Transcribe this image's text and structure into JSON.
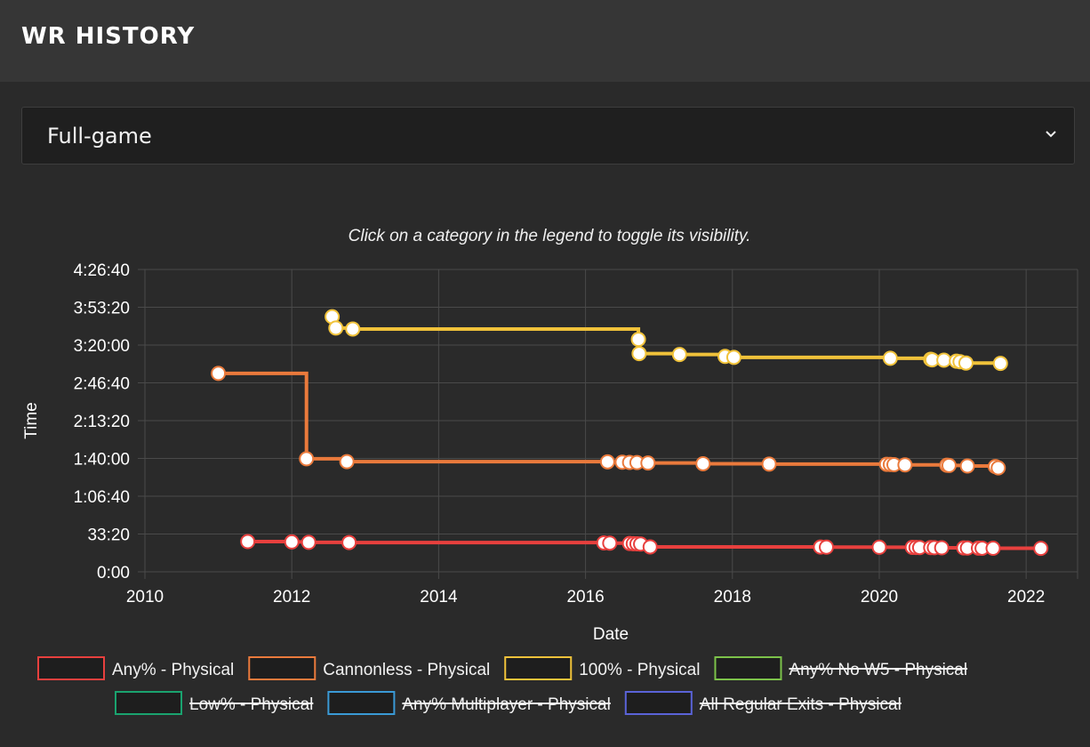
{
  "header": {
    "title": "WR HISTORY"
  },
  "selector": {
    "value": "Full-game"
  },
  "chart_data": {
    "type": "line",
    "title": "",
    "subtitle": "Click on a category in the legend to toggle its visibility.",
    "xlabel": "Date",
    "ylabel": "Time",
    "xlim": [
      2010,
      2022.7
    ],
    "ylim": [
      0,
      16000
    ],
    "x_ticks": [
      "2010",
      "2012",
      "2014",
      "2016",
      "2018",
      "2020",
      "2022"
    ],
    "y_ticks": [
      "0:00",
      "33:20",
      "1:06:40",
      "1:40:00",
      "2:13:20",
      "2:46:40",
      "3:20:00",
      "3:53:20",
      "4:26:40"
    ],
    "step_line": true,
    "grid": true,
    "legend_position": "bottom",
    "series": [
      {
        "name": "Any% - Physical",
        "color": "#e8403e",
        "hidden": false,
        "points": [
          [
            2011.4,
            1600
          ],
          [
            2012.0,
            1580
          ],
          [
            2012.23,
            1560
          ],
          [
            2012.78,
            1550
          ],
          [
            2016.25,
            1530
          ],
          [
            2016.33,
            1520
          ],
          [
            2016.6,
            1500
          ],
          [
            2016.65,
            1490
          ],
          [
            2016.7,
            1480
          ],
          [
            2016.75,
            1470
          ],
          [
            2016.88,
            1320
          ],
          [
            2019.2,
            1310
          ],
          [
            2019.28,
            1305
          ],
          [
            2020.0,
            1300
          ],
          [
            2020.45,
            1295
          ],
          [
            2020.5,
            1290
          ],
          [
            2020.55,
            1285
          ],
          [
            2020.7,
            1280
          ],
          [
            2020.75,
            1275
          ],
          [
            2020.85,
            1270
          ],
          [
            2021.15,
            1265
          ],
          [
            2021.2,
            1260
          ],
          [
            2021.35,
            1255
          ],
          [
            2021.4,
            1250
          ],
          [
            2021.55,
            1245
          ],
          [
            2022.2,
            1240
          ]
        ]
      },
      {
        "name": "Cannonless - Physical",
        "color": "#ea7a3c",
        "hidden": false,
        "points": [
          [
            2011.0,
            10500
          ],
          [
            2012.2,
            5980
          ],
          [
            2012.75,
            5830
          ],
          [
            2016.3,
            5820
          ],
          [
            2016.5,
            5800
          ],
          [
            2016.6,
            5790
          ],
          [
            2016.7,
            5780
          ],
          [
            2016.85,
            5760
          ],
          [
            2017.6,
            5720
          ],
          [
            2018.5,
            5700
          ],
          [
            2020.1,
            5690
          ],
          [
            2020.15,
            5680
          ],
          [
            2020.2,
            5670
          ],
          [
            2020.35,
            5660
          ],
          [
            2020.92,
            5640
          ],
          [
            2020.95,
            5630
          ],
          [
            2021.2,
            5600
          ],
          [
            2021.58,
            5570
          ],
          [
            2021.62,
            5500
          ]
        ]
      },
      {
        "name": "100% - Physical",
        "color": "#f0c23a",
        "hidden": false,
        "points": [
          [
            2012.55,
            13500
          ],
          [
            2012.6,
            12900
          ],
          [
            2012.83,
            12850
          ],
          [
            2016.72,
            12300
          ],
          [
            2016.73,
            11550
          ],
          [
            2017.28,
            11500
          ],
          [
            2017.9,
            11400
          ],
          [
            2018.02,
            11350
          ],
          [
            2020.15,
            11300
          ],
          [
            2020.7,
            11250
          ],
          [
            2020.72,
            11220
          ],
          [
            2020.88,
            11200
          ],
          [
            2021.05,
            11150
          ],
          [
            2021.1,
            11120
          ],
          [
            2021.18,
            11050
          ],
          [
            2021.65,
            11030
          ]
        ]
      },
      {
        "name": "Any% No W5 - Physical",
        "color": "#7cc24a",
        "hidden": true,
        "points": []
      },
      {
        "name": "Low% - Physical",
        "color": "#1aa36f",
        "hidden": true,
        "points": []
      },
      {
        "name": "Any% Multiplayer - Physical",
        "color": "#3a9ad6",
        "hidden": true,
        "points": []
      },
      {
        "name": "All Regular Exits - Physical",
        "color": "#5a63d8",
        "hidden": true,
        "points": []
      }
    ]
  }
}
